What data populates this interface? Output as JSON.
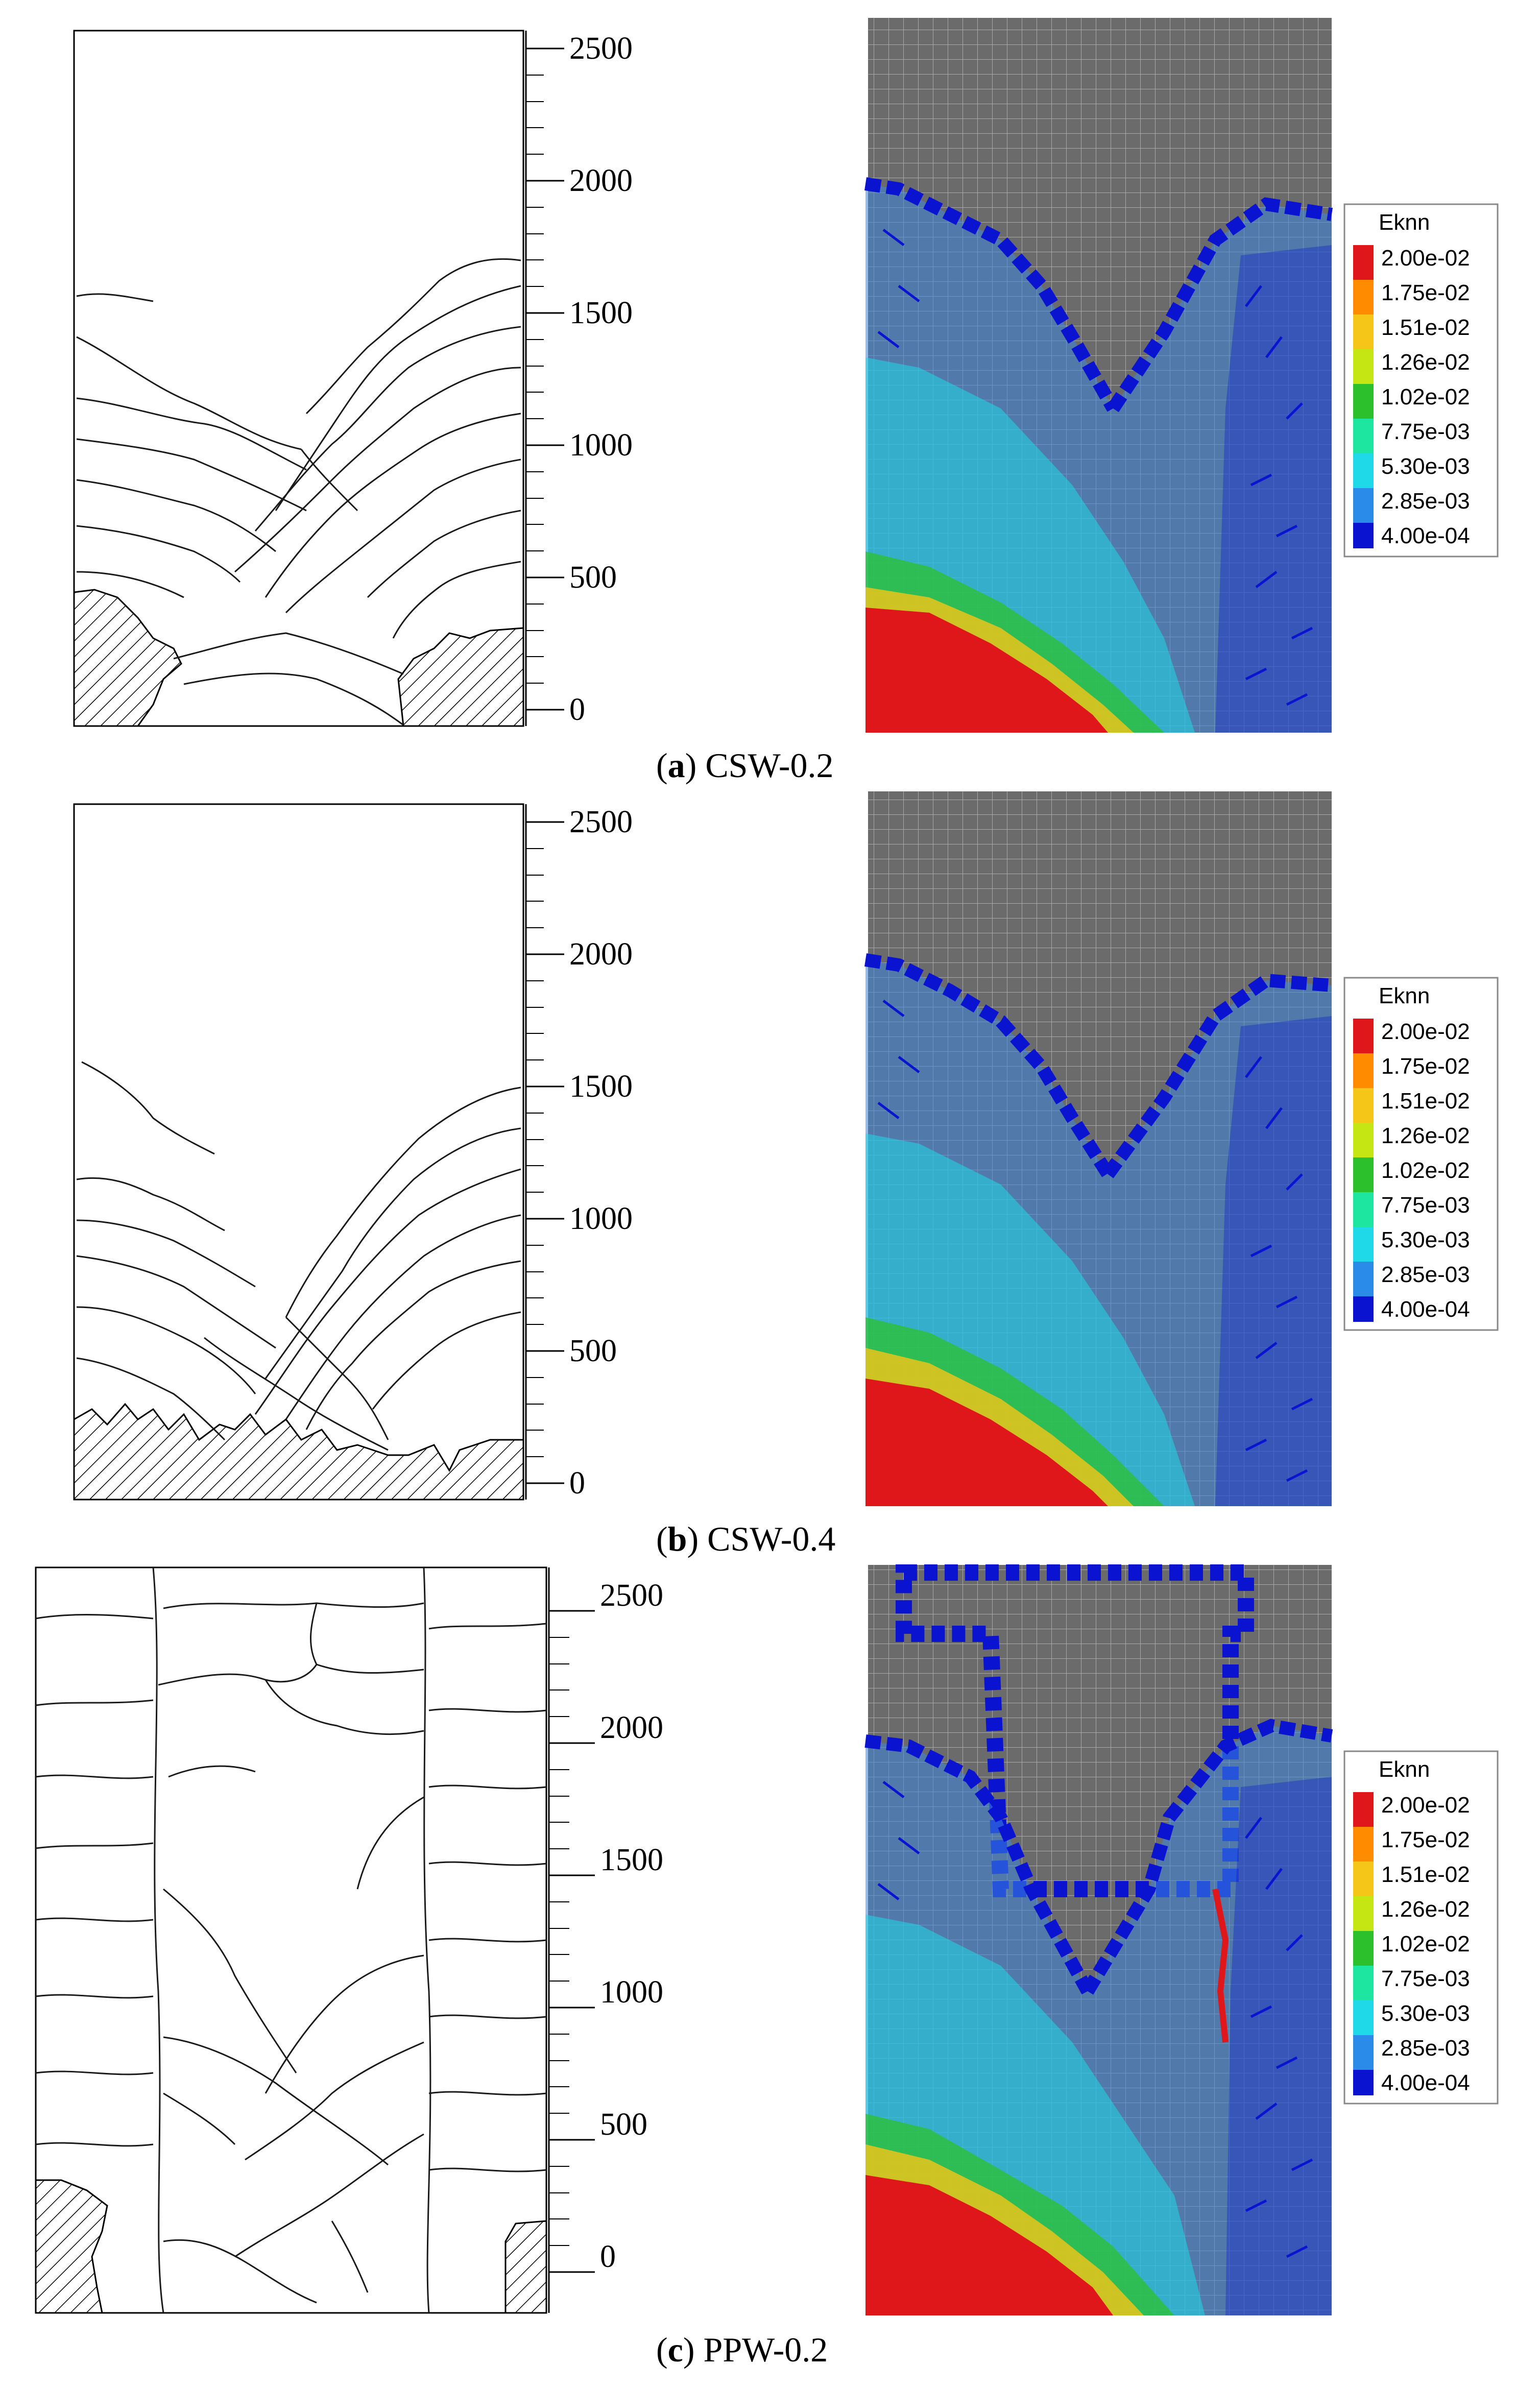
{
  "panels": [
    {
      "id": "a",
      "caption": {
        "letter": "a",
        "name": "CSW-0.2"
      },
      "axis_labels": [
        "2500",
        "2000",
        "1500",
        "1000",
        "500",
        "0"
      ],
      "legend": {
        "title": "Eknn",
        "entries": [
          {
            "label": "2.00e-02",
            "color": "#e0171a"
          },
          {
            "label": "1.75e-02",
            "color": "#ff8c00"
          },
          {
            "label": "1.51e-02",
            "color": "#f5c518"
          },
          {
            "label": "1.26e-02",
            "color": "#c6e614"
          },
          {
            "label": "1.02e-02",
            "color": "#2cc12c"
          },
          {
            "label": "7.75e-03",
            "color": "#1de6a0"
          },
          {
            "label": "5.30e-03",
            "color": "#1fd9e8"
          },
          {
            "label": "2.85e-03",
            "color": "#2a8ce8"
          },
          {
            "label": "4.00e-04",
            "color": "#0a14d0"
          }
        ]
      }
    },
    {
      "id": "b",
      "caption": {
        "letter": "b",
        "name": "CSW-0.4"
      },
      "axis_labels": [
        "2500",
        "2000",
        "1500",
        "1000",
        "500",
        "0"
      ],
      "legend": {
        "title": "Eknn",
        "entries": [
          {
            "label": "2.00e-02",
            "color": "#e0171a"
          },
          {
            "label": "1.75e-02",
            "color": "#ff8c00"
          },
          {
            "label": "1.51e-02",
            "color": "#f5c518"
          },
          {
            "label": "1.26e-02",
            "color": "#c6e614"
          },
          {
            "label": "1.02e-02",
            "color": "#2cc12c"
          },
          {
            "label": "7.75e-03",
            "color": "#1de6a0"
          },
          {
            "label": "5.30e-03",
            "color": "#1fd9e8"
          },
          {
            "label": "2.85e-03",
            "color": "#2a8ce8"
          },
          {
            "label": "4.00e-04",
            "color": "#0a14d0"
          }
        ]
      }
    },
    {
      "id": "c",
      "caption": {
        "letter": "c",
        "name": "PPW-0.2"
      },
      "axis_labels": [
        "2500",
        "2000",
        "1500",
        "1000",
        "500",
        "0"
      ],
      "legend": {
        "title": "Eknn",
        "entries": [
          {
            "label": "2.00e-02",
            "color": "#e0171a"
          },
          {
            "label": "1.75e-02",
            "color": "#ff8c00"
          },
          {
            "label": "1.51e-02",
            "color": "#f5c518"
          },
          {
            "label": "1.26e-02",
            "color": "#c6e614"
          },
          {
            "label": "1.02e-02",
            "color": "#2cc12c"
          },
          {
            "label": "7.75e-03",
            "color": "#1de6a0"
          },
          {
            "label": "5.30e-03",
            "color": "#1fd9e8"
          },
          {
            "label": "2.85e-03",
            "color": "#2a8ce8"
          },
          {
            "label": "4.00e-04",
            "color": "#0a14d0"
          }
        ]
      }
    }
  ],
  "colors": {
    "mesh_background": "#6b6b6b",
    "mesh_grid": "#a8a8a8",
    "crack_line": "#1a1a1a",
    "strain_low": "#0a14d0",
    "strain_high": "#e0171a"
  }
}
